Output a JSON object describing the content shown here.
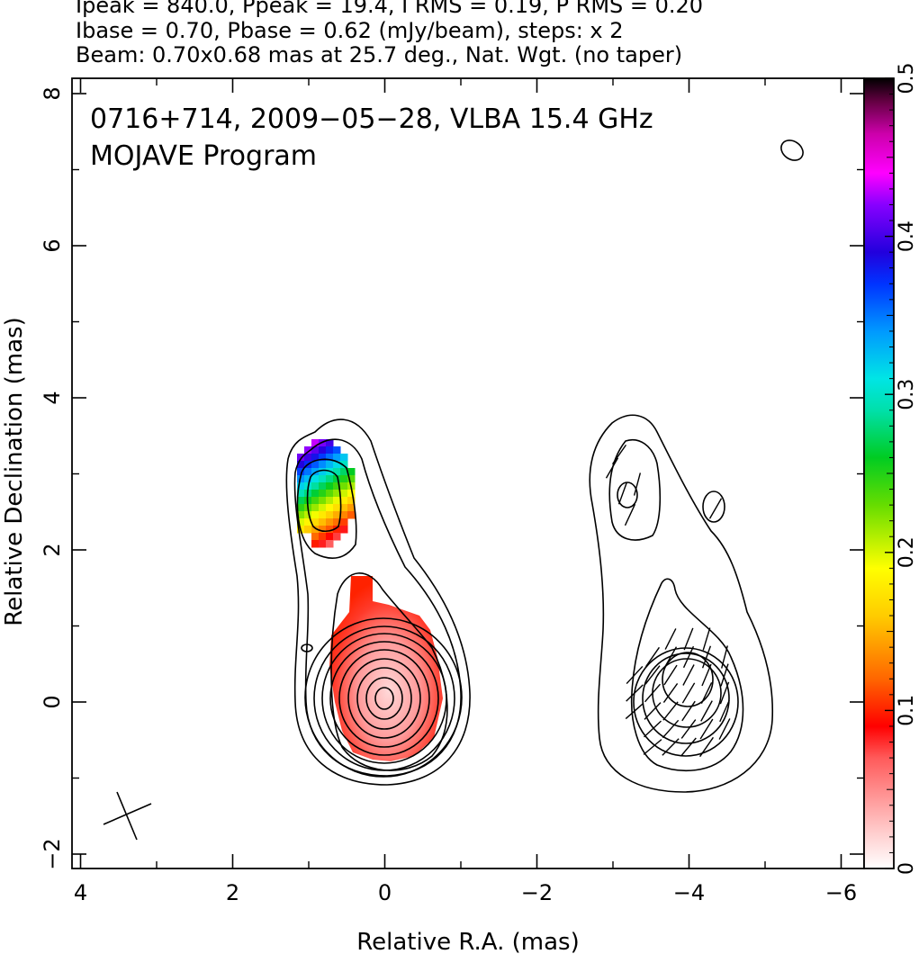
{
  "header": {
    "line1": "Ipeak = 840.0, Ppeak = 19.4, I RMS = 0.19, P RMS = 0.20",
    "line2": "Ibase = 0.70, Pbase = 0.62 (mJy/beam), steps: x 2",
    "line3": "Beam: 0.70x0.68 mas at 25.7 deg., Nat. Wgt. (no taper)"
  },
  "chart_data": {
    "type": "heatmap",
    "title_line1": "0716+714, 2009−05−28, VLBA 15.4 GHz",
    "title_line2": "MOJAVE Program",
    "xlabel": "Relative R.A. (mas)",
    "ylabel": "Relative Declination (mas)",
    "xlim": [
      4.2,
      -6.2
    ],
    "ylim": [
      -2.2,
      8.2
    ],
    "x_ticks": [
      4,
      2,
      0,
      -2,
      -4,
      -6
    ],
    "x_tick_labels": [
      "4",
      "2",
      "0",
      "−2",
      "−4",
      "−6"
    ],
    "y_ticks": [
      -2,
      0,
      2,
      4,
      6,
      8
    ],
    "y_tick_labels": [
      "−2",
      "0",
      "2",
      "4",
      "6",
      "8"
    ],
    "colorbar": {
      "range": [
        0,
        0.5
      ],
      "ticks": [
        0,
        0.1,
        0.2,
        0.3,
        0.4,
        0.5
      ],
      "tick_labels": [
        "0",
        "0.1",
        "0.2",
        "0.3",
        "0.4",
        "0.5"
      ]
    },
    "panels": [
      {
        "center": [
          0,
          0
        ],
        "fractional_polarization": [
          {
            "region": "core",
            "value_range": [
              0.02,
              0.1
            ]
          },
          {
            "region": "jet_knot",
            "ra": 0.9,
            "dec": 2.7,
            "value_range": [
              0.1,
              0.45
            ]
          }
        ]
      },
      {
        "center": [
          -4,
          0
        ],
        "evpa_ticks": true,
        "knots": [
          {
            "ra": -3.2,
            "dec": 2.7
          },
          {
            "ra": -4.3,
            "dec": 2.6
          }
        ]
      }
    ],
    "extra_component": {
      "ra": -5.4,
      "dec": 7.3
    },
    "beam": {
      "major": 0.7,
      "minor": 0.68,
      "pa_deg": 25.7
    },
    "grid": false
  }
}
